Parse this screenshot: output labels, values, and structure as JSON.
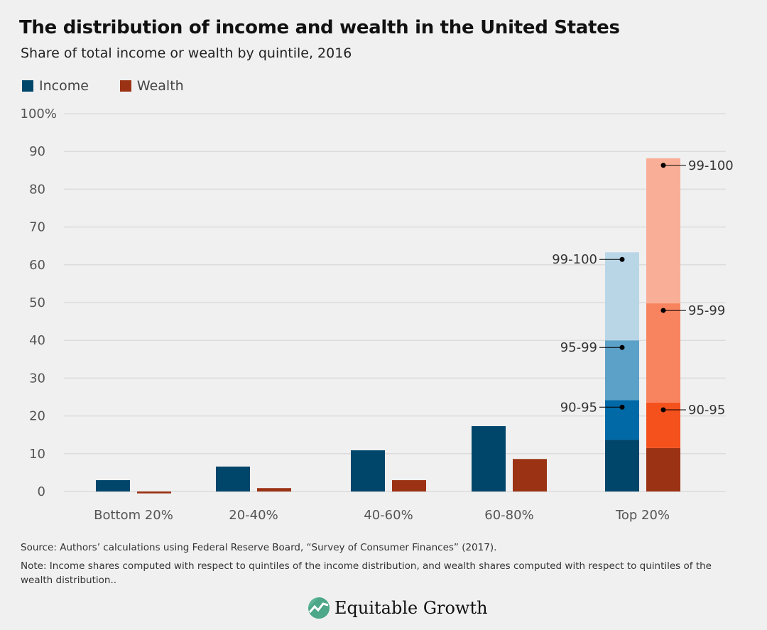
{
  "title": "The distribution of income and wealth in the United States",
  "subtitle": "Share of total income or wealth by quintile, 2016",
  "legend": [
    {
      "label": "Income",
      "color": "#00456a"
    },
    {
      "label": "Wealth",
      "color": "#9b3214"
    }
  ],
  "chart_data": {
    "type": "bar",
    "stacked_last_category": true,
    "categories": [
      "Bottom 20%",
      "20-40%",
      "40-60%",
      "60-80%",
      "Top 20%"
    ],
    "ylim": [
      0,
      100
    ],
    "yticks": [
      "0",
      "10",
      "20",
      "30",
      "40",
      "50",
      "60",
      "70",
      "80",
      "90",
      "100%"
    ],
    "grid": true,
    "legend_placement": "top-left",
    "series": [
      {
        "name": "Income",
        "color": "#00456a",
        "values": [
          3.0,
          6.6,
          10.9,
          17.3,
          63.3
        ]
      },
      {
        "name": "Wealth",
        "color": "#9b3214",
        "values": [
          -0.5,
          0.9,
          3.0,
          8.6,
          88.2
        ]
      }
    ],
    "top20_breakdown": {
      "Income": [
        {
          "label": "",
          "from": 0,
          "to": 13.7,
          "color": "#00456a"
        },
        {
          "label": "90-95",
          "from": 13.7,
          "to": 24.2,
          "color": "#0069a6"
        },
        {
          "label": "95-99",
          "from": 24.2,
          "to": 40.0,
          "color": "#5ca1c7"
        },
        {
          "label": "99-100",
          "from": 40.0,
          "to": 63.3,
          "color": "#b9d6e7"
        }
      ],
      "Wealth": [
        {
          "label": "",
          "from": 0,
          "to": 11.5,
          "color": "#9b3214"
        },
        {
          "label": "90-95",
          "from": 11.5,
          "to": 23.5,
          "color": "#f5511d"
        },
        {
          "label": "95-99",
          "from": 23.5,
          "to": 49.8,
          "color": "#f8835f"
        },
        {
          "label": "99-100",
          "from": 49.8,
          "to": 88.2,
          "color": "#f9af97"
        }
      ]
    }
  },
  "source": "Source: Authors’ calculations using Federal Reserve Board, “Survey of Consumer Finances” (2017).",
  "note": "Note: Income shares computed with respect to quintiles of the income distribution, and wealth shares computed with respect to quintiles of the wealth distribution..",
  "logo": {
    "text": "Equitable Growth",
    "color": "#5bb596"
  }
}
